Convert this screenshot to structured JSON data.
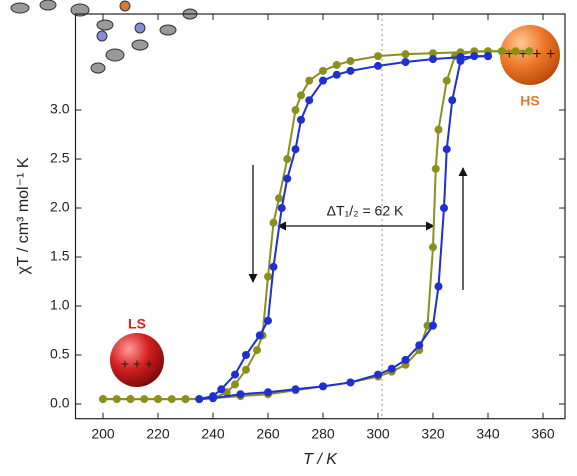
{
  "chart_data": {
    "type": "line",
    "x_label": "T / K",
    "y_label": "χT / cm³ mol⁻¹ K",
    "annotation": "ΔT₁/₂ = 62 K",
    "hs_label": "HS",
    "ls_label": "LS",
    "xlim": [
      190,
      368
    ],
    "ylim": [
      -0.15,
      3.98
    ],
    "xticks": [
      200,
      220,
      240,
      260,
      280,
      300,
      320,
      340,
      360
    ],
    "yticks": [
      {
        "value": 0,
        "label": "0.0"
      },
      0.5,
      {
        "value": 1,
        "label": "1.0"
      },
      1.5,
      {
        "value": 2,
        "label": "2.0"
      },
      2.5,
      {
        "value": 3,
        "label": "3.0"
      }
    ],
    "series": [
      {
        "color": "#8a8f1e",
        "x": [
          355,
          345,
          340,
          330,
          320,
          310,
          300,
          290,
          285,
          280,
          275,
          272,
          270,
          267,
          264,
          262,
          260,
          258,
          256,
          252,
          248,
          245,
          240,
          235,
          230,
          225,
          220,
          215,
          210,
          205,
          200
        ],
        "values": [
          3.6,
          3.6,
          3.6,
          3.59,
          3.58,
          3.57,
          3.55,
          3.5,
          3.46,
          3.4,
          3.3,
          3.15,
          3.0,
          2.5,
          2.1,
          1.85,
          1.3,
          0.7,
          0.55,
          0.35,
          0.2,
          0.12,
          0.06,
          0.05,
          0.05,
          0.05,
          0.05,
          0.05,
          0.05,
          0.05,
          0.05
        ]
      },
      {
        "color": "#8a8f1e",
        "x": [
          200,
          210,
          220,
          230,
          240,
          250,
          260,
          270,
          280,
          290,
          300,
          305,
          310,
          315,
          318,
          320,
          321,
          322,
          325,
          328,
          335,
          340,
          350,
          355
        ],
        "values": [
          0.05,
          0.05,
          0.05,
          0.05,
          0.06,
          0.08,
          0.1,
          0.14,
          0.18,
          0.22,
          0.28,
          0.33,
          0.4,
          0.55,
          0.8,
          1.6,
          2.4,
          2.8,
          3.3,
          3.55,
          3.6,
          3.6,
          3.6,
          3.6
        ]
      },
      {
        "color": "#1f2fd0",
        "x": [
          340,
          330,
          320,
          310,
          300,
          290,
          285,
          280,
          275,
          272,
          270,
          267,
          265,
          262,
          260,
          257,
          252,
          248,
          243,
          240,
          235
        ],
        "values": [
          3.55,
          3.54,
          3.52,
          3.49,
          3.45,
          3.4,
          3.36,
          3.3,
          3.1,
          2.9,
          2.6,
          2.3,
          2.0,
          1.4,
          0.85,
          0.7,
          0.5,
          0.3,
          0.15,
          0.08,
          0.05
        ]
      },
      {
        "color": "#1f2fd0",
        "x": [
          235,
          240,
          250,
          260,
          270,
          280,
          290,
          300,
          305,
          310,
          315,
          320,
          322,
          324,
          325,
          327,
          330,
          335,
          340
        ],
        "values": [
          0.05,
          0.06,
          0.1,
          0.12,
          0.15,
          0.18,
          0.22,
          0.3,
          0.36,
          0.45,
          0.6,
          0.8,
          1.2,
          2.0,
          2.6,
          3.1,
          3.5,
          3.55,
          3.55
        ]
      }
    ]
  }
}
